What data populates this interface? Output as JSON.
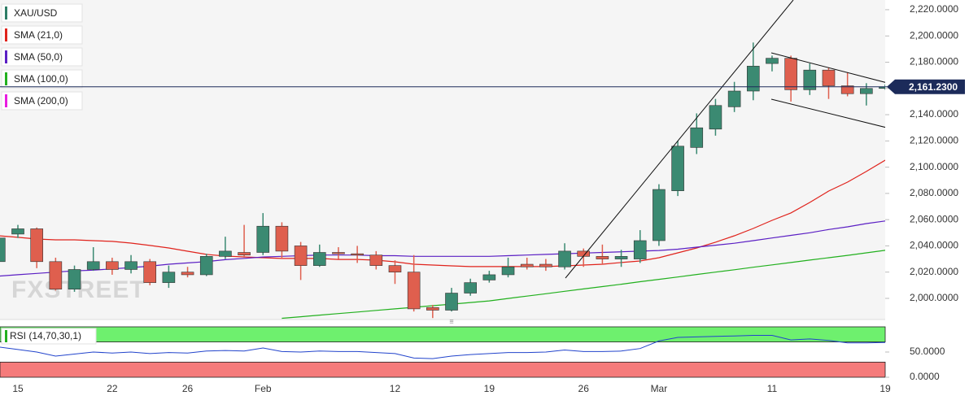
{
  "chart_data": [
    {
      "type": "candlestick",
      "symbol": "XAU/USD",
      "symbol_color": "#2e7d66",
      "watermark": "FXSTREET",
      "up_color": "#3b8a72",
      "down_color": "#df5f4e",
      "categories": [
        null,
        "15",
        null,
        null,
        null,
        null,
        "22",
        null,
        null,
        null,
        "26",
        null,
        null,
        null,
        "Feb",
        null,
        null,
        null,
        null,
        null,
        null,
        "12",
        null,
        null,
        null,
        null,
        "19",
        null,
        null,
        null,
        null,
        "26",
        null,
        null,
        null,
        "Mar",
        null,
        null,
        null,
        null,
        null,
        "11",
        null,
        null,
        null,
        null,
        null,
        "19"
      ],
      "open": [
        2028,
        2049,
        2053,
        2028,
        2007,
        2022,
        2028,
        2022,
        2028,
        2012,
        2020,
        2018,
        2032,
        2035,
        2035,
        2055,
        2040,
        2025,
        2035,
        2034,
        2033,
        2025,
        2020,
        1993,
        1991,
        2004,
        2014,
        2018,
        2026,
        2026,
        2024,
        2036,
        2032,
        2030,
        2030,
        2044,
        2082,
        2115,
        2129,
        2146,
        2158,
        2179,
        2183,
        2159,
        2174,
        2162,
        2156,
        2160
      ],
      "high": [
        2060,
        2056,
        2054,
        2031,
        2025,
        2039,
        2031,
        2033,
        2030,
        2025,
        2024,
        2034,
        2047,
        2056,
        2065,
        2058,
        2043,
        2041,
        2039,
        2040,
        2036,
        2029,
        2033,
        1995,
        2008,
        2015,
        2021,
        2031,
        2031,
        2030,
        2042,
        2038,
        2041,
        2037,
        2052,
        2087,
        2120,
        2141,
        2152,
        2165,
        2195,
        2185,
        2185,
        2179,
        2176,
        2172,
        2164,
        2163
      ],
      "low": [
        2024,
        2046,
        2023,
        2006,
        2005,
        2021,
        2018,
        2019,
        2010,
        2008,
        2016,
        2017,
        2030,
        2031,
        2033,
        2031,
        2014,
        2024,
        2030,
        2027,
        2022,
        2011,
        1990,
        1985,
        1990,
        2002,
        2012,
        2016,
        2022,
        2021,
        2022,
        2024,
        2026,
        2024,
        2027,
        2040,
        2078,
        2110,
        2124,
        2142,
        2151,
        2173,
        2150,
        2155,
        2152,
        2154,
        2147,
        2159
      ],
      "close": [
        2046,
        2053,
        2028,
        2007,
        2022,
        2028,
        2022,
        2028,
        2012,
        2020,
        2018,
        2032,
        2036,
        2033,
        2055,
        2036,
        2025,
        2035,
        2034,
        2033,
        2025,
        2020,
        1992,
        1991,
        2004,
        2012,
        2018,
        2024,
        2024,
        2024,
        2036,
        2032,
        2030,
        2032,
        2044,
        2083,
        2116,
        2130,
        2147,
        2158,
        2177,
        2183,
        2159,
        2174,
        2162,
        2156,
        2160,
        2161.23
      ],
      "series": [
        {
          "name": "SMA (21,0)",
          "color": "#e0231c",
          "values": [
            2047.7,
            2046.5,
            2045.2,
            2044.6,
            2044.6,
            2044,
            2043.4,
            2042.1,
            2040.3,
            2038.4,
            2035.9,
            2033.5,
            2032.2,
            2031.6,
            2031,
            2030.4,
            2030.4,
            2030.4,
            2029.7,
            2029.7,
            2029.1,
            2027.9,
            2026,
            2025.4,
            2024.8,
            2024.2,
            2024.2,
            2024.2,
            2024.2,
            2024.2,
            2024.8,
            2025.4,
            2026,
            2027.3,
            2028.5,
            2031,
            2034.7,
            2038.4,
            2042.8,
            2047.7,
            2053.3,
            2059.5,
            2065.1,
            2073.1,
            2081.8,
            2088.6,
            2096.7,
            2105.3
          ]
        },
        {
          "name": "SMA (50,0)",
          "color": "#5b1fc4",
          "values": [
            2017,
            2018,
            2019,
            2020,
            2021,
            2021.5,
            2022.5,
            2023.5,
            2024.5,
            2026,
            2027,
            2028,
            2029.5,
            2030.5,
            2031.5,
            2032,
            2032.5,
            2033,
            2033,
            2033,
            2032.5,
            2032.5,
            2032,
            2032,
            2032,
            2032,
            2032,
            2032.5,
            2033,
            2033.5,
            2034,
            2034.5,
            2035,
            2035.5,
            2036,
            2036.5,
            2037.5,
            2039,
            2040.5,
            2042,
            2044,
            2046,
            2048,
            2050,
            2052.5,
            2054.5,
            2057,
            2059
          ]
        },
        {
          "name": "SMA (100,0)",
          "color": "#22b01e",
          "values": [
            null,
            null,
            null,
            null,
            null,
            null,
            null,
            null,
            null,
            null,
            null,
            null,
            null,
            null,
            null,
            1984.8,
            1986,
            1987.2,
            1988.4,
            1989.6,
            1990.8,
            1992,
            1993.2,
            1994.4,
            1995.6,
            1996.8,
            1998.1,
            1999.9,
            2001.7,
            2003.5,
            2005.4,
            2007.2,
            2009,
            2010.8,
            2012.7,
            2014.5,
            2016.3,
            2018.2,
            2020,
            2021.8,
            2023.7,
            2025.5,
            2027.3,
            2029.2,
            2031,
            2032.8,
            2034.7,
            2036.6
          ]
        },
        {
          "name": "SMA (200,0)",
          "color": "#e81ce0",
          "values": [
            null,
            null,
            null,
            null,
            null,
            null,
            null,
            null,
            null,
            null,
            null,
            null,
            null,
            null,
            null,
            null,
            null,
            null,
            null,
            null,
            null,
            null,
            null,
            null,
            null,
            null,
            null,
            null,
            null,
            null,
            null,
            null,
            null,
            null,
            null,
            null,
            null,
            null,
            null,
            null,
            null,
            null,
            null,
            null,
            null,
            null,
            null,
            null
          ]
        }
      ],
      "last_price": {
        "value": 2161.23,
        "label": "2,161.2300",
        "color": "#1c2b5a"
      },
      "ylim": [
        1984.5,
        2227.4
      ],
      "yticks": [
        {
          "value": 2000,
          "label": "2,000.0000"
        },
        {
          "value": 2020,
          "label": "2,020.0000"
        },
        {
          "value": 2040,
          "label": "2,040.0000"
        },
        {
          "value": 2060,
          "label": "2,060.0000"
        },
        {
          "value": 2080,
          "label": "2,080.0000"
        },
        {
          "value": 2100,
          "label": "2,100.0000"
        },
        {
          "value": 2120,
          "label": "2,120.0000"
        },
        {
          "value": 2140,
          "label": "2,140.0000"
        },
        {
          "value": 2160,
          "label": "2,160.0000"
        },
        {
          "value": 2180,
          "label": "2,180.0000"
        },
        {
          "value": 2200,
          "label": "2,200.0000"
        },
        {
          "value": 2220,
          "label": "2,220.0000"
        }
      ]
    },
    {
      "type": "line",
      "name": "RSI (14,70,30,1)",
      "color": "#2244cc",
      "legend_color": "#22b01e",
      "values": [
        60,
        55,
        50,
        42,
        46,
        50,
        48,
        50,
        47,
        49,
        48,
        52,
        53,
        52,
        58,
        51,
        50,
        52,
        51,
        51,
        49,
        47,
        38,
        37,
        42,
        45,
        47,
        49,
        49,
        50,
        54,
        51,
        51,
        52,
        57,
        72,
        79,
        80,
        81,
        82,
        83,
        83,
        74,
        76,
        73,
        68,
        68,
        69
      ],
      "zones": [
        {
          "from": 70,
          "to": 100,
          "color": "#6ef06e"
        },
        {
          "from": 0,
          "to": 30,
          "color": "#f57b7b"
        }
      ],
      "ylim": [
        0,
        100
      ],
      "yticks": [
        {
          "value": 50,
          "label": "50.0000"
        },
        {
          "value": 0,
          "label": "0.0000"
        }
      ]
    }
  ]
}
